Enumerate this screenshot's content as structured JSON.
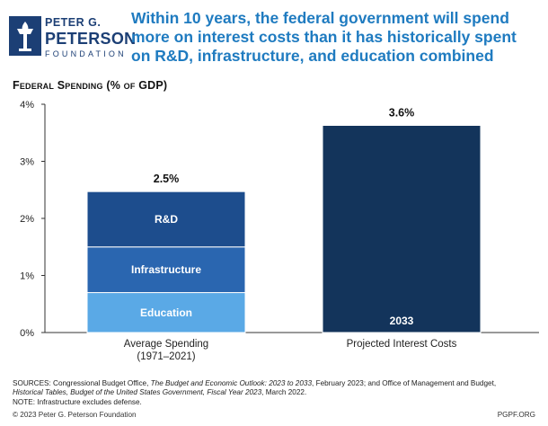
{
  "branding": {
    "logo_line1": "PETER G.",
    "logo_line2": "PETERSON",
    "logo_line3": "FOUNDATION",
    "logo_color": "#1c3f75",
    "logo_icon": "torch-icon"
  },
  "headline": "Within 10 years, the federal government will spend more on interest costs than it has historically spent on R&D, infrastructure, and education combined",
  "chart_data": {
    "type": "bar",
    "stacked": true,
    "title": "Federal Spending (% of GDP)",
    "xlabel": "",
    "ylabel": "",
    "ylim": [
      0,
      4
    ],
    "yticks": [
      "0%",
      "1%",
      "2%",
      "3%",
      "4%"
    ],
    "grid": false,
    "categories": [
      {
        "line1": "Average Spending",
        "line2": "(1971–2021)"
      },
      {
        "line1": "Projected Interest Costs",
        "line2": ""
      }
    ],
    "series": [
      {
        "name": "Education",
        "values": [
          0.7,
          0
        ],
        "color": "#5aa9e6"
      },
      {
        "name": "Infrastructure",
        "values": [
          0.8,
          0
        ],
        "color": "#2a66b0"
      },
      {
        "name": "R&D",
        "values": [
          0.97,
          0
        ],
        "color": "#1d4d8d"
      },
      {
        "name": "2033",
        "values": [
          0,
          3.63
        ],
        "color": "#13345b"
      }
    ],
    "totals": [
      "2.5%",
      "3.6%"
    ]
  },
  "sources": {
    "line1_pre": "SOURCES: Congressional Budget Office, ",
    "line1_italic": "The Budget and Economic Outlook: 2023 to 2033",
    "line1_post": ", February 2023; and Office of Management and Budget,",
    "line2_italic": "Historical Tables, Budget of the United States Government, Fiscal Year 2023",
    "line2_post": ", March 2022.",
    "note": "NOTE: Infrastructure excludes defense."
  },
  "footer": {
    "copyright": "© 2023 Peter G. Peterson Foundation",
    "site": "PGPF.ORG"
  }
}
